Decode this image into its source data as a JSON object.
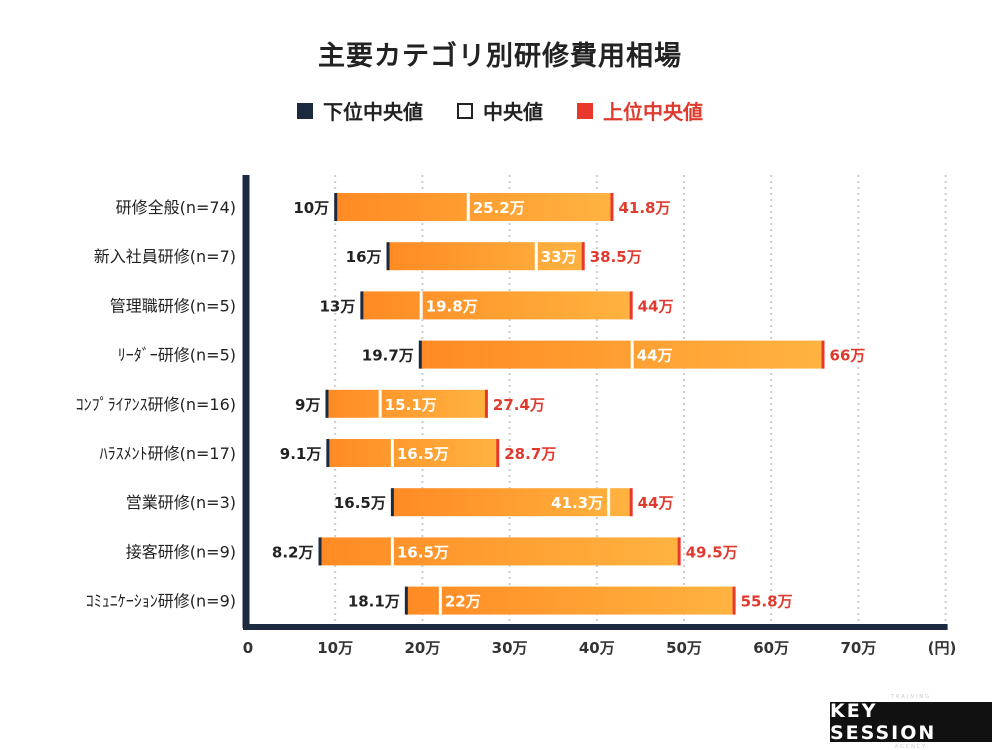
{
  "chart_data": {
    "type": "bar",
    "title": "主要カテゴリ別研修費用相場",
    "categories": [
      "研修全般(n=74)",
      "新入社員研修(n=7)",
      "管理職研修(n=5)",
      "ﾘｰﾀﾞｰ研修(n=5)",
      "ｺﾝﾌﾟﾗｲｱﾝｽ研修(n=16)",
      "ﾊﾗｽﾒﾝﾄ研修(n=17)",
      "営業研修(n=3)",
      "接客研修(n=9)",
      "ｺﾐｭﾆｹｰｼｮﾝ研修(n=9)"
    ],
    "series": [
      {
        "name": "下位中央値",
        "color": "#1b2a3f",
        "values": [
          10,
          16,
          13,
          19.7,
          9,
          9.1,
          16.5,
          8.2,
          18.1
        ],
        "labels": [
          "10万",
          "16万",
          "13万",
          "19.7万",
          "9万",
          "9.1万",
          "16.5万",
          "8.2万",
          "18.1万"
        ]
      },
      {
        "name": "中央値",
        "color": "#ffffff",
        "values": [
          25.2,
          33,
          19.8,
          44,
          15.1,
          16.5,
          41.3,
          16.5,
          22
        ],
        "labels": [
          "25.2万",
          "33万",
          "19.8万",
          "44万",
          "15.1万",
          "16.5万",
          "41.3万",
          "16.5万",
          "22万"
        ]
      },
      {
        "name": "上位中央値",
        "color": "#e8382e",
        "values": [
          41.8,
          38.5,
          44,
          66,
          27.4,
          28.7,
          44,
          49.5,
          55.8
        ],
        "labels": [
          "41.8万",
          "38.5万",
          "44万",
          "66万",
          "27.4万",
          "28.7万",
          "44万",
          "49.5万",
          "55.8万"
        ]
      }
    ],
    "x_ticks": [
      "0",
      "10万",
      "20万",
      "30万",
      "40万",
      "50万",
      "60万",
      "70万"
    ],
    "x_unit": "(円)",
    "xlim": [
      0,
      80
    ],
    "grid": true,
    "legend_position": "top-center",
    "bar_gradient": [
      "#ff8a24",
      "#ffb340"
    ],
    "axis_color": "#1b2a3f",
    "grid_color": "#cccccc",
    "label_dark_color": "#222222",
    "label_red_color": "#e03a2e"
  },
  "logo": {
    "top_text": "TRAINING",
    "main_text": "KEY SESSION",
    "bottom_text": "AGENCY"
  }
}
